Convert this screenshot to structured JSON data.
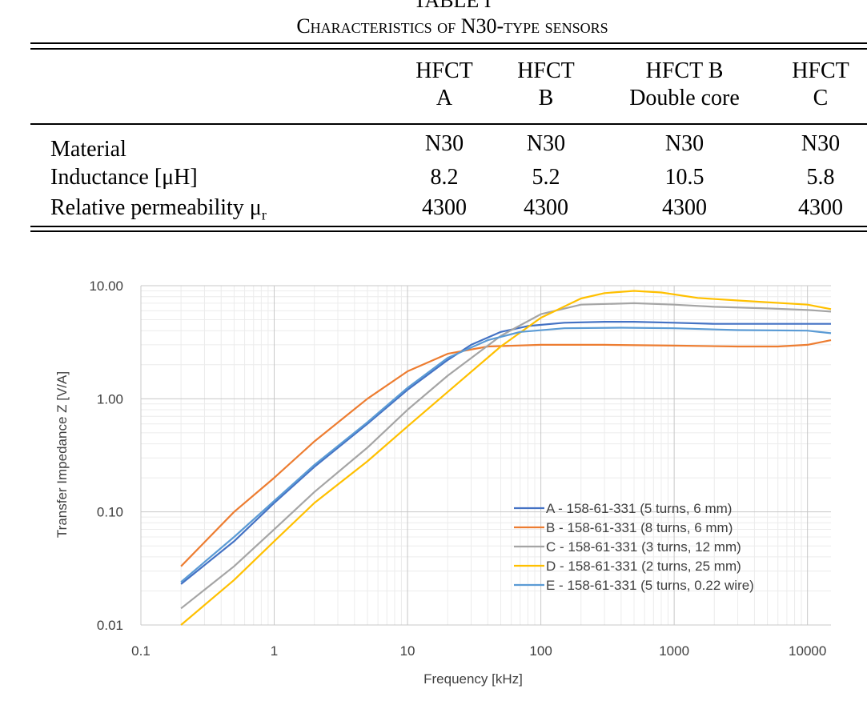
{
  "table": {
    "label": "TABLE I",
    "caption": "Characteristics of N30-type sensors",
    "headers": [
      {
        "line1": "HFCT",
        "line2": "A"
      },
      {
        "line1": "HFCT",
        "line2": "B"
      },
      {
        "line1": "HFCT B",
        "line2": "Double core"
      },
      {
        "line1": "HFCT",
        "line2": "C"
      }
    ],
    "rows": [
      {
        "label": "Material",
        "values": [
          "N30",
          "N30",
          "N30",
          "N30"
        ]
      },
      {
        "label": "Inductance [μH]",
        "values": [
          "8.2",
          "5.2",
          "10.5",
          "5.8"
        ]
      },
      {
        "label": "Relative permeability μ",
        "subscript": "r",
        "values": [
          "4300",
          "4300",
          "4300",
          "4300"
        ]
      }
    ]
  },
  "chart_data": {
    "type": "line",
    "xlabel": "Frequency [kHz]",
    "ylabel": "Transfer Impedance Z [V/A]",
    "x_scale": "log",
    "y_scale": "log",
    "xlim": [
      0.1,
      15000
    ],
    "ylim": [
      0.01,
      10
    ],
    "xticks": [
      "0.1",
      "1",
      "10",
      "100",
      "1000",
      "10000"
    ],
    "yticks": [
      "0.01",
      "0.10",
      "1.00",
      "10.00"
    ],
    "grid": true,
    "legend_position": "bottom-right",
    "series": [
      {
        "name": "A - 158-61-331 (5 turns, 6 mm)",
        "color": "#4472C4",
        "points": [
          [
            0.2,
            0.023
          ],
          [
            0.5,
            0.055
          ],
          [
            1,
            0.12
          ],
          [
            2,
            0.25
          ],
          [
            5,
            0.6
          ],
          [
            10,
            1.2
          ],
          [
            20,
            2.2
          ],
          [
            30,
            3.0
          ],
          [
            50,
            3.9
          ],
          [
            80,
            4.4
          ],
          [
            150,
            4.7
          ],
          [
            300,
            4.8
          ],
          [
            500,
            4.8
          ],
          [
            1000,
            4.7
          ],
          [
            2000,
            4.6
          ],
          [
            5000,
            4.6
          ],
          [
            15000,
            4.6
          ]
        ]
      },
      {
        "name": "B - 158-61-331 (8 turns, 6 mm)",
        "color": "#ED7D31",
        "points": [
          [
            0.2,
            0.033
          ],
          [
            0.5,
            0.1
          ],
          [
            1,
            0.2
          ],
          [
            2,
            0.42
          ],
          [
            5,
            1.0
          ],
          [
            10,
            1.75
          ],
          [
            20,
            2.5
          ],
          [
            40,
            2.9
          ],
          [
            100,
            3.0
          ],
          [
            300,
            3.0
          ],
          [
            1000,
            2.95
          ],
          [
            3000,
            2.9
          ],
          [
            6000,
            2.9
          ],
          [
            10000,
            3.0
          ],
          [
            15000,
            3.3
          ]
        ]
      },
      {
        "name": "C - 158-61-331 (3 turns, 12 mm)",
        "color": "#A5A5A5",
        "points": [
          [
            0.2,
            0.014
          ],
          [
            0.5,
            0.033
          ],
          [
            1,
            0.07
          ],
          [
            2,
            0.15
          ],
          [
            5,
            0.37
          ],
          [
            10,
            0.8
          ],
          [
            20,
            1.6
          ],
          [
            50,
            3.6
          ],
          [
            100,
            5.6
          ],
          [
            200,
            6.8
          ],
          [
            500,
            7.0
          ],
          [
            1000,
            6.8
          ],
          [
            2000,
            6.5
          ],
          [
            5000,
            6.3
          ],
          [
            10000,
            6.1
          ],
          [
            15000,
            5.9
          ]
        ]
      },
      {
        "name": "D - 158-61-331 (2 turns, 25 mm)",
        "color": "#FFC000",
        "points": [
          [
            0.2,
            0.01
          ],
          [
            0.5,
            0.025
          ],
          [
            1,
            0.055
          ],
          [
            2,
            0.12
          ],
          [
            5,
            0.28
          ],
          [
            10,
            0.57
          ],
          [
            20,
            1.15
          ],
          [
            50,
            2.9
          ],
          [
            100,
            5.2
          ],
          [
            200,
            7.7
          ],
          [
            300,
            8.6
          ],
          [
            500,
            9.0
          ],
          [
            800,
            8.7
          ],
          [
            1500,
            7.8
          ],
          [
            3000,
            7.4
          ],
          [
            10000,
            6.8
          ],
          [
            15000,
            6.2
          ]
        ]
      },
      {
        "name": "E - 158-61-331 (5 turns, 0.22 wire)",
        "color": "#5B9BD5",
        "points": [
          [
            0.2,
            0.024
          ],
          [
            0.5,
            0.06
          ],
          [
            1,
            0.125
          ],
          [
            2,
            0.26
          ],
          [
            5,
            0.62
          ],
          [
            10,
            1.25
          ],
          [
            20,
            2.3
          ],
          [
            40,
            3.3
          ],
          [
            70,
            3.9
          ],
          [
            150,
            4.2
          ],
          [
            400,
            4.25
          ],
          [
            1000,
            4.2
          ],
          [
            3000,
            4.05
          ],
          [
            10000,
            4.0
          ],
          [
            15000,
            3.8
          ]
        ]
      }
    ]
  }
}
